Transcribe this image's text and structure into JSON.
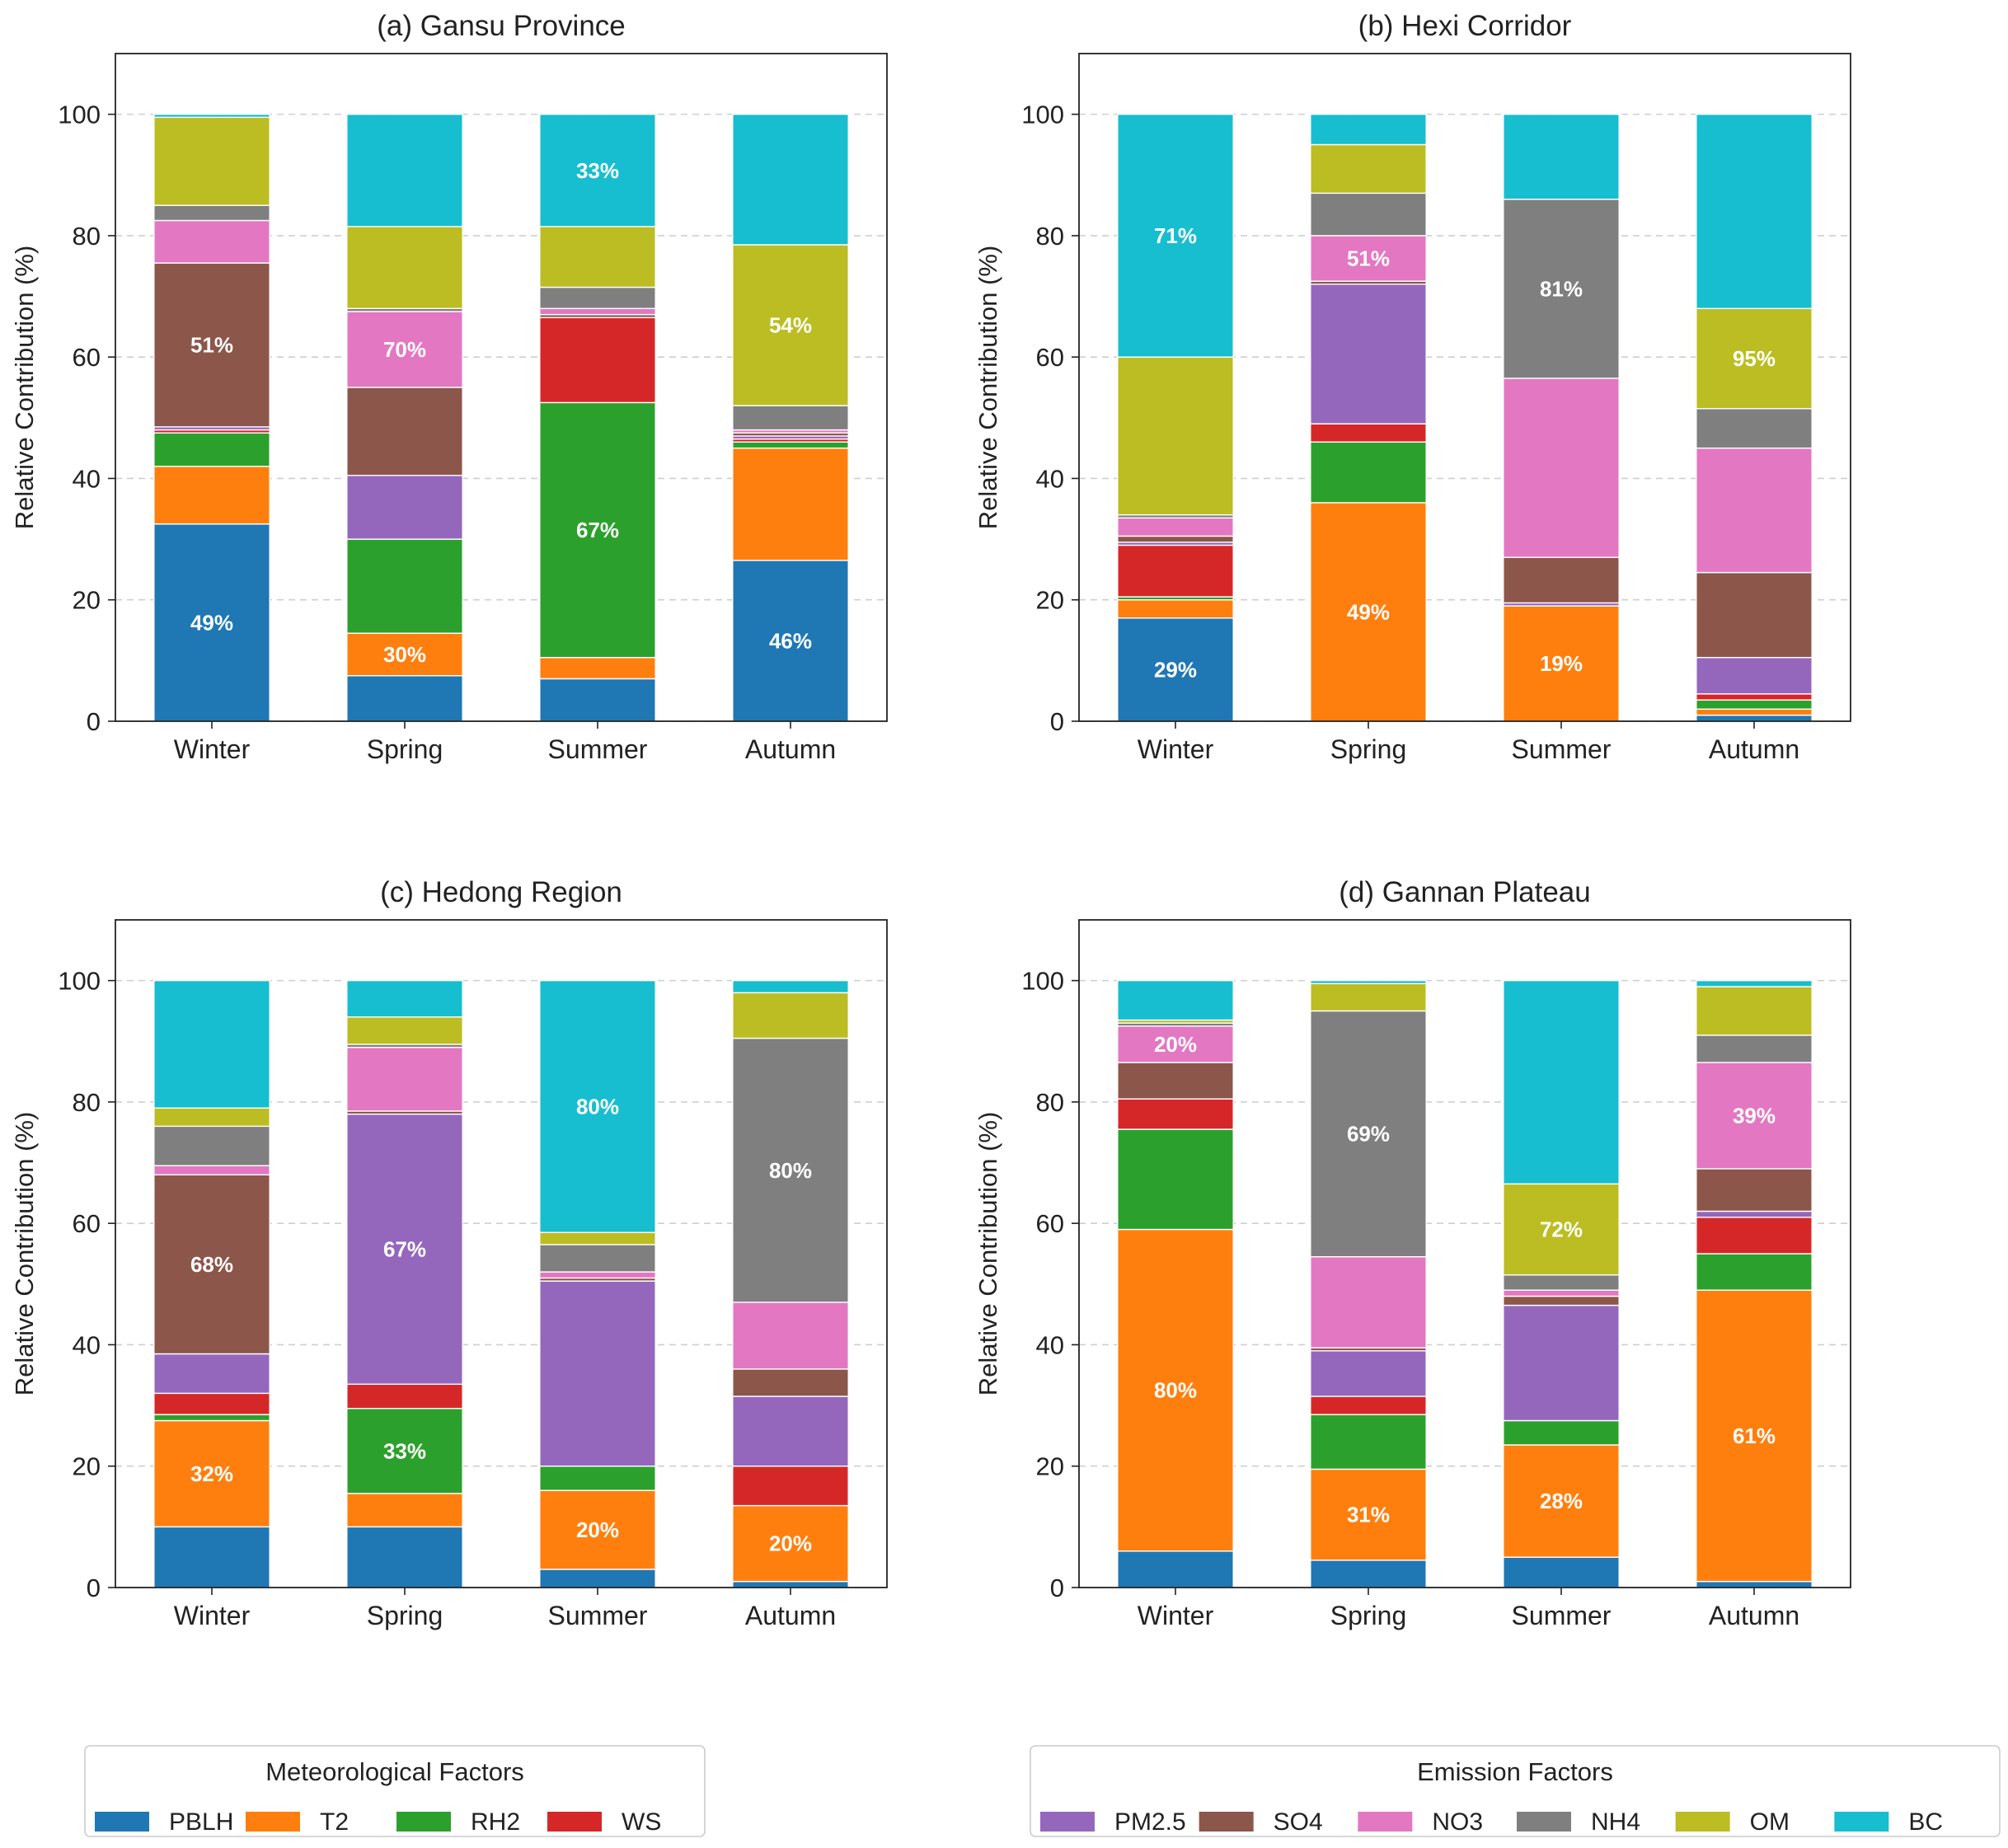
{
  "colors": {
    "PBLH": "#1f77b4",
    "T2": "#ff7f0e",
    "RH2": "#2ca02c",
    "WS": "#d62728",
    "PM2.5": "#9467bd",
    "SO4": "#8c564b",
    "NO3": "#e377c2",
    "NH4": "#7f7f7f",
    "OM": "#bcbd22",
    "BC": "#17becf"
  },
  "legends": {
    "meteorological": {
      "title": "Meteorological Factors",
      "items": [
        "PBLH",
        "T2",
        "RH2",
        "WS"
      ]
    },
    "emission": {
      "title": "Emission Factors",
      "items": [
        "PM2.5",
        "SO4",
        "NO3",
        "NH4",
        "OM",
        "BC"
      ]
    }
  },
  "chart_data": [
    {
      "type": "bar",
      "stacked": true,
      "title": "(a) Gansu Province",
      "xlabel": "",
      "ylabel": "Relative Contribution (%)",
      "ylim": [
        0,
        110
      ],
      "yticks": [
        0,
        20,
        40,
        60,
        80,
        100
      ],
      "grid": "horizontal dashed",
      "categories": [
        "Winter",
        "Spring",
        "Summer",
        "Autumn"
      ],
      "series": [
        {
          "name": "PBLH",
          "values": [
            32.5,
            7.5,
            7,
            26.5
          ]
        },
        {
          "name": "T2",
          "values": [
            9.5,
            7,
            3.5,
            18.5
          ]
        },
        {
          "name": "RH2",
          "values": [
            5.5,
            15.5,
            42,
            1
          ]
        },
        {
          "name": "WS",
          "values": [
            0.5,
            0,
            14,
            0.5
          ]
        },
        {
          "name": "PM2.5",
          "values": [
            0.5,
            10.5,
            0,
            0.5
          ]
        },
        {
          "name": "SO4",
          "values": [
            27,
            14.5,
            0.5,
            0.5
          ]
        },
        {
          "name": "NO3",
          "values": [
            7,
            12.5,
            1,
            0.5
          ]
        },
        {
          "name": "NH4",
          "values": [
            2.5,
            0.5,
            3.5,
            4
          ]
        },
        {
          "name": "OM",
          "values": [
            14.5,
            13.5,
            10,
            26.5
          ]
        },
        {
          "name": "BC",
          "values": [
            0.5,
            18.5,
            18.5,
            21.5
          ]
        }
      ],
      "annotations": [
        {
          "category": "Winter",
          "series": "PBLH",
          "text": "49%"
        },
        {
          "category": "Winter",
          "series": "SO4",
          "text": "51%"
        },
        {
          "category": "Spring",
          "series": "T2",
          "text": "30%"
        },
        {
          "category": "Spring",
          "series": "NO3",
          "text": "70%"
        },
        {
          "category": "Summer",
          "series": "RH2",
          "text": "67%"
        },
        {
          "category": "Summer",
          "series": "BC",
          "text": "33%"
        },
        {
          "category": "Autumn",
          "series": "PBLH",
          "text": "46%"
        },
        {
          "category": "Autumn",
          "series": "OM",
          "text": "54%"
        }
      ]
    },
    {
      "type": "bar",
      "stacked": true,
      "title": "(b) Hexi Corridor",
      "xlabel": "",
      "ylabel": "Relative Contribution (%)",
      "ylim": [
        0,
        110
      ],
      "yticks": [
        0,
        20,
        40,
        60,
        80,
        100
      ],
      "grid": "horizontal dashed",
      "categories": [
        "Winter",
        "Spring",
        "Summer",
        "Autumn"
      ],
      "series": [
        {
          "name": "PBLH",
          "values": [
            17,
            0,
            0,
            1
          ]
        },
        {
          "name": "T2",
          "values": [
            3,
            36,
            19,
            1
          ]
        },
        {
          "name": "RH2",
          "values": [
            0.5,
            10,
            0,
            1.5
          ]
        },
        {
          "name": "WS",
          "values": [
            8.5,
            3,
            0,
            1
          ]
        },
        {
          "name": "PM2.5",
          "values": [
            0.5,
            23,
            0.5,
            6
          ]
        },
        {
          "name": "SO4",
          "values": [
            1,
            0.5,
            7.5,
            14
          ]
        },
        {
          "name": "NO3",
          "values": [
            3,
            7.5,
            29.5,
            20.5
          ]
        },
        {
          "name": "NH4",
          "values": [
            0.5,
            7,
            29.5,
            6.5
          ]
        },
        {
          "name": "OM",
          "values": [
            26,
            8,
            0,
            16.5
          ]
        },
        {
          "name": "BC",
          "values": [
            40,
            5,
            14,
            32
          ]
        }
      ],
      "annotations": [
        {
          "category": "Winter",
          "series": "PBLH",
          "text": "29%"
        },
        {
          "category": "Winter",
          "series": "BC",
          "text": "71%"
        },
        {
          "category": "Spring",
          "series": "T2",
          "text": "49%"
        },
        {
          "category": "Spring",
          "series": "NO3",
          "text": "51%"
        },
        {
          "category": "Summer",
          "series": "T2",
          "text": "19%"
        },
        {
          "category": "Summer",
          "series": "NH4",
          "text": "81%"
        },
        {
          "category": "Autumn",
          "series": "OM",
          "text": "95%"
        }
      ]
    },
    {
      "type": "bar",
      "stacked": true,
      "title": "(c) Hedong Region",
      "xlabel": "",
      "ylabel": "Relative Contribution (%)",
      "ylim": [
        0,
        110
      ],
      "yticks": [
        0,
        20,
        40,
        60,
        80,
        100
      ],
      "grid": "horizontal dashed",
      "categories": [
        "Winter",
        "Spring",
        "Summer",
        "Autumn"
      ],
      "series": [
        {
          "name": "PBLH",
          "values": [
            10,
            10,
            3,
            1
          ]
        },
        {
          "name": "T2",
          "values": [
            17.5,
            5.5,
            13,
            12.5
          ]
        },
        {
          "name": "RH2",
          "values": [
            1,
            14,
            4,
            0
          ]
        },
        {
          "name": "WS",
          "values": [
            3.5,
            4,
            0,
            6.5
          ]
        },
        {
          "name": "PM2.5",
          "values": [
            6.5,
            44.5,
            30.5,
            11.5
          ]
        },
        {
          "name": "SO4",
          "values": [
            29.5,
            0.5,
            0.5,
            4.5
          ]
        },
        {
          "name": "NO3",
          "values": [
            1.5,
            10.5,
            1,
            11
          ]
        },
        {
          "name": "NH4",
          "values": [
            6.5,
            0.5,
            4.5,
            43.5
          ]
        },
        {
          "name": "OM",
          "values": [
            3,
            4.5,
            2,
            7.5
          ]
        },
        {
          "name": "BC",
          "values": [
            21,
            6,
            41.5,
            2
          ]
        }
      ],
      "annotations": [
        {
          "category": "Winter",
          "series": "T2",
          "text": "32%"
        },
        {
          "category": "Winter",
          "series": "SO4",
          "text": "68%"
        },
        {
          "category": "Spring",
          "series": "RH2",
          "text": "33%"
        },
        {
          "category": "Spring",
          "series": "PM2.5",
          "text": "67%"
        },
        {
          "category": "Summer",
          "series": "T2",
          "text": "20%"
        },
        {
          "category": "Summer",
          "series": "BC",
          "text": "80%"
        },
        {
          "category": "Autumn",
          "series": "T2",
          "text": "20%"
        },
        {
          "category": "Autumn",
          "series": "NH4",
          "text": "80%"
        }
      ]
    },
    {
      "type": "bar",
      "stacked": true,
      "title": "(d) Gannan Plateau",
      "xlabel": "",
      "ylabel": "Relative Contribution (%)",
      "ylim": [
        0,
        110
      ],
      "yticks": [
        0,
        20,
        40,
        60,
        80,
        100
      ],
      "grid": "horizontal dashed",
      "categories": [
        "Winter",
        "Spring",
        "Summer",
        "Autumn"
      ],
      "series": [
        {
          "name": "PBLH",
          "values": [
            6,
            4.5,
            5,
            1
          ]
        },
        {
          "name": "T2",
          "values": [
            53,
            15,
            18.5,
            48
          ]
        },
        {
          "name": "RH2",
          "values": [
            16.5,
            9,
            4,
            6
          ]
        },
        {
          "name": "WS",
          "values": [
            5,
            3,
            0,
            6
          ]
        },
        {
          "name": "PM2.5",
          "values": [
            0,
            7.5,
            19,
            1
          ]
        },
        {
          "name": "SO4",
          "values": [
            6,
            0.5,
            1.5,
            7
          ]
        },
        {
          "name": "NO3",
          "values": [
            6,
            15,
            1,
            17.5
          ]
        },
        {
          "name": "NH4",
          "values": [
            0.5,
            40.5,
            2.5,
            4.5
          ]
        },
        {
          "name": "OM",
          "values": [
            0.5,
            4.5,
            15,
            8
          ]
        },
        {
          "name": "BC",
          "values": [
            6.5,
            0.5,
            33.5,
            1
          ]
        }
      ],
      "annotations": [
        {
          "category": "Winter",
          "series": "T2",
          "text": "80%"
        },
        {
          "category": "Winter",
          "series": "NO3",
          "text": "20%"
        },
        {
          "category": "Spring",
          "series": "T2",
          "text": "31%"
        },
        {
          "category": "Spring",
          "series": "NH4",
          "text": "69%"
        },
        {
          "category": "Summer",
          "series": "T2",
          "text": "28%"
        },
        {
          "category": "Summer",
          "series": "OM",
          "text": "72%"
        },
        {
          "category": "Autumn",
          "series": "T2",
          "text": "61%"
        },
        {
          "category": "Autumn",
          "series": "NO3",
          "text": "39%"
        }
      ]
    }
  ]
}
